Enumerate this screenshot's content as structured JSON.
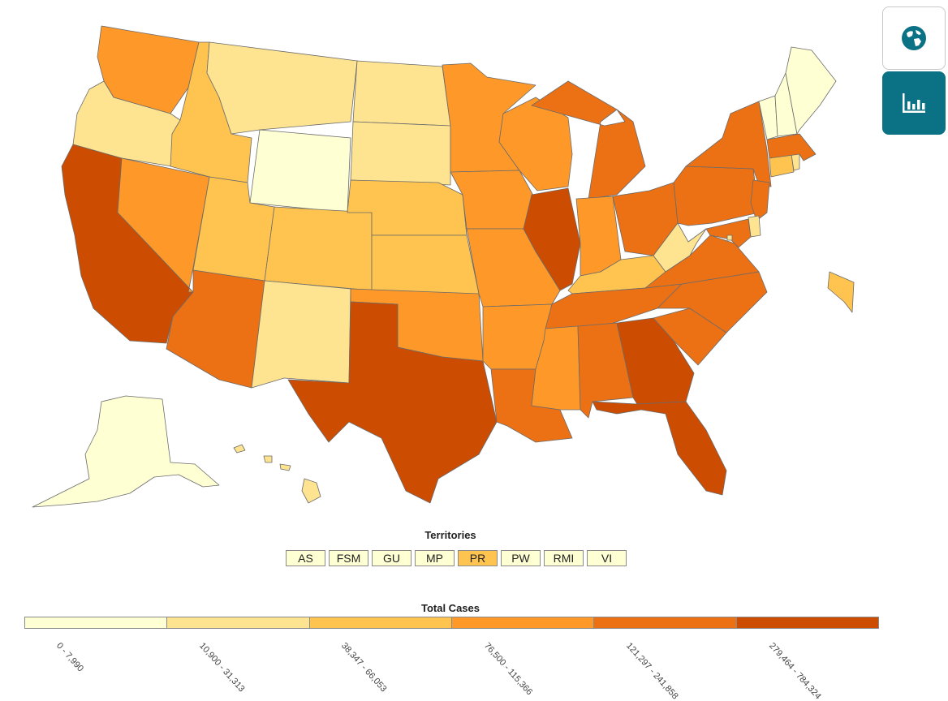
{
  "colors": {
    "bin0": "#ffffd4",
    "bin1": "#fee391",
    "bin2": "#fec44f",
    "bin3": "#fe9929",
    "bin4": "#ec7014",
    "bin5": "#cc4c02",
    "accent": "#0b7285"
  },
  "controls": {
    "map_view_icon": "globe-icon",
    "chart_view_icon": "bar-chart-icon"
  },
  "territories": {
    "title": "Territories",
    "items": [
      {
        "label": "AS",
        "bin": 0
      },
      {
        "label": "FSM",
        "bin": 0
      },
      {
        "label": "GU",
        "bin": 0
      },
      {
        "label": "MP",
        "bin": 0
      },
      {
        "label": "PR",
        "bin": 2
      },
      {
        "label": "PW",
        "bin": 0
      },
      {
        "label": "RMI",
        "bin": 0
      },
      {
        "label": "VI",
        "bin": 0
      }
    ]
  },
  "legend": {
    "title": "Total Cases",
    "bins": [
      "0 - 7,990",
      "10,900 - 31,313",
      "38,347 - 66,053",
      "76,500 - 115,366",
      "121,297 - 241,858",
      "279,464 - 784,324"
    ]
  },
  "states": [
    {
      "id": "WA",
      "bin": 3
    },
    {
      "id": "OR",
      "bin": 1
    },
    {
      "id": "CA",
      "bin": 5
    },
    {
      "id": "NV",
      "bin": 3
    },
    {
      "id": "ID",
      "bin": 2
    },
    {
      "id": "MT",
      "bin": 1
    },
    {
      "id": "WY",
      "bin": 0
    },
    {
      "id": "UT",
      "bin": 2
    },
    {
      "id": "AZ",
      "bin": 4
    },
    {
      "id": "CO",
      "bin": 2
    },
    {
      "id": "NM",
      "bin": 1
    },
    {
      "id": "ND",
      "bin": 1
    },
    {
      "id": "SD",
      "bin": 1
    },
    {
      "id": "NE",
      "bin": 2
    },
    {
      "id": "KS",
      "bin": 2
    },
    {
      "id": "OK",
      "bin": 3
    },
    {
      "id": "TX",
      "bin": 5
    },
    {
      "id": "MN",
      "bin": 3
    },
    {
      "id": "IA",
      "bin": 3
    },
    {
      "id": "MO",
      "bin": 3
    },
    {
      "id": "AR",
      "bin": 3
    },
    {
      "id": "LA",
      "bin": 4
    },
    {
      "id": "WI",
      "bin": 3
    },
    {
      "id": "IL",
      "bin": 5
    },
    {
      "id": "MI",
      "bin": 4
    },
    {
      "id": "IN",
      "bin": 3
    },
    {
      "id": "OH",
      "bin": 4
    },
    {
      "id": "KY",
      "bin": 2
    },
    {
      "id": "TN",
      "bin": 4
    },
    {
      "id": "MS",
      "bin": 3
    },
    {
      "id": "AL",
      "bin": 4
    },
    {
      "id": "GA",
      "bin": 5
    },
    {
      "id": "FL",
      "bin": 5
    },
    {
      "id": "SC",
      "bin": 4
    },
    {
      "id": "NC",
      "bin": 4
    },
    {
      "id": "VA",
      "bin": 4
    },
    {
      "id": "WV",
      "bin": 1
    },
    {
      "id": "PA",
      "bin": 4
    },
    {
      "id": "NY",
      "bin": 4
    },
    {
      "id": "NJ",
      "bin": 4
    },
    {
      "id": "DE",
      "bin": 1
    },
    {
      "id": "MD",
      "bin": 4
    },
    {
      "id": "CT",
      "bin": 2
    },
    {
      "id": "RI",
      "bin": 1
    },
    {
      "id": "MA",
      "bin": 4
    },
    {
      "id": "VT",
      "bin": 0
    },
    {
      "id": "NH",
      "bin": 0
    },
    {
      "id": "ME",
      "bin": 0
    },
    {
      "id": "AK",
      "bin": 0
    },
    {
      "id": "HI",
      "bin": 1
    },
    {
      "id": "DC",
      "bin": 1
    }
  ]
}
